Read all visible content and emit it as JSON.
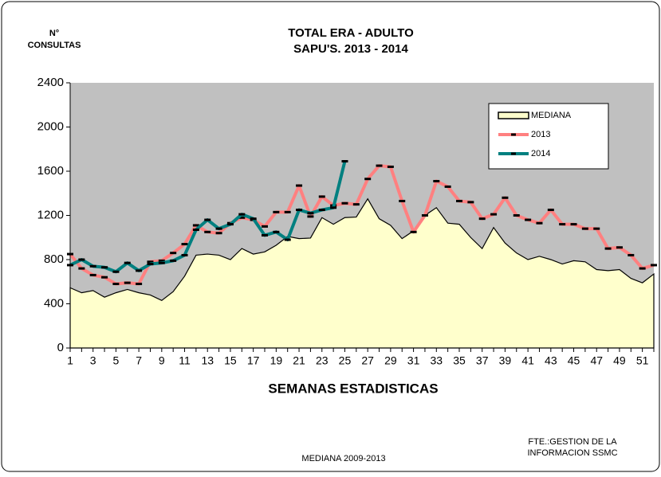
{
  "chart_data": {
    "type": "line",
    "title": [
      "TOTAL ERA - ADULTO",
      "SAPU'S.   2013 - 2014"
    ],
    "ylabel": [
      "N°",
      "CONSULTAS"
    ],
    "xlabel": "SEMANAS ESTADISTICAS",
    "annotations": [
      "MEDIANA 2009-2013",
      "FTE.:GESTION DE LA",
      "INFORMACION SSMC"
    ],
    "categories": [
      1,
      null,
      3,
      null,
      5,
      null,
      7,
      null,
      9,
      null,
      11,
      null,
      13,
      null,
      15,
      null,
      17,
      null,
      19,
      null,
      21,
      null,
      23,
      null,
      25,
      null,
      27,
      null,
      29,
      null,
      31,
      null,
      33,
      null,
      35,
      null,
      37,
      null,
      39,
      null,
      41,
      null,
      43,
      null,
      45,
      null,
      47,
      null,
      49,
      null,
      51,
      null
    ],
    "series": [
      {
        "name": "MEDIANA",
        "type": "area",
        "color": "#ffffcc",
        "values": [
          545,
          500,
          520,
          460,
          500,
          530,
          500,
          480,
          430,
          510,
          650,
          840,
          850,
          840,
          800,
          900,
          850,
          870,
          930,
          1010,
          990,
          995,
          1180,
          1120,
          1180,
          1185,
          1350,
          1170,
          1110,
          990,
          1060,
          1200,
          1270,
          1130,
          1120,
          1000,
          900,
          1090,
          950,
          860,
          800,
          830,
          800,
          760,
          790,
          780,
          710,
          700,
          710,
          630,
          590,
          670
        ]
      },
      {
        "name": "2013",
        "type": "line",
        "color": "#ff8080",
        "values": [
          850,
          720,
          660,
          640,
          580,
          590,
          580,
          780,
          790,
          860,
          940,
          1110,
          1050,
          1040,
          1130,
          1180,
          1160,
          1100,
          1230,
          1230,
          1470,
          1190,
          1370,
          1290,
          1310,
          1300,
          1530,
          1650,
          1640,
          1330,
          1050,
          1200,
          1510,
          1460,
          1330,
          1320,
          1170,
          1210,
          1360,
          1200,
          1160,
          1130,
          1250,
          1120,
          1120,
          1080,
          1080,
          900,
          910,
          840,
          720,
          750
        ]
      },
      {
        "name": "2014",
        "type": "line",
        "color": "#008080",
        "values": [
          750,
          800,
          740,
          730,
          690,
          770,
          700,
          760,
          770,
          790,
          840,
          1070,
          1160,
          1080,
          1120,
          1210,
          1170,
          1020,
          1050,
          980,
          1250,
          1220,
          1250,
          1270,
          1690,
          null,
          null,
          null,
          null,
          null,
          null,
          null,
          null,
          null,
          null,
          null,
          null,
          null,
          null,
          null,
          null,
          null,
          null,
          null,
          null,
          null,
          null,
          null,
          null,
          null,
          null,
          null
        ]
      }
    ],
    "ylim": [
      0,
      2400
    ],
    "yticks": [
      0,
      400,
      800,
      1200,
      1600,
      2000,
      2400
    ],
    "plot_background": "#c0c0c0",
    "grid": false,
    "legend": "upper right"
  }
}
